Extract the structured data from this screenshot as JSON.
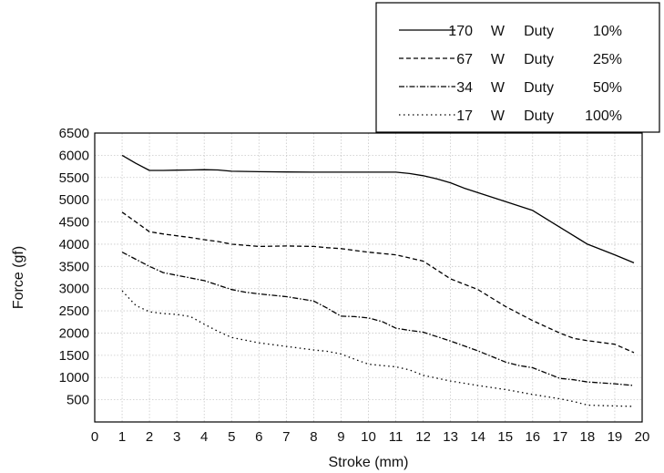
{
  "chart_data": {
    "type": "line",
    "xlabel": "Stroke (mm)",
    "ylabel": "Force (gf)",
    "xlim": [
      0,
      20
    ],
    "ylim": [
      0,
      6500
    ],
    "xticks": [
      0,
      1,
      2,
      3,
      4,
      5,
      6,
      7,
      8,
      9,
      10,
      11,
      12,
      13,
      14,
      15,
      16,
      17,
      18,
      19,
      20
    ],
    "yticks": [
      500,
      1000,
      1500,
      2000,
      2500,
      3000,
      3500,
      4000,
      4500,
      5000,
      5500,
      6000,
      6500
    ],
    "grid": true,
    "legend_position": "top-right, above plot",
    "series": [
      {
        "name": "170 W Duty 10%",
        "dash": "solid",
        "label_parts": [
          "170",
          "W",
          "Duty",
          "10%"
        ],
        "x": [
          1,
          1.5,
          2,
          2.5,
          3,
          3.5,
          4,
          4.5,
          5,
          6,
          7,
          8,
          9,
          10,
          11,
          11.5,
          12,
          12.5,
          13,
          13.5,
          14,
          15,
          16,
          17,
          18,
          19,
          19.7
        ],
        "y": [
          6000,
          5820,
          5660,
          5660,
          5665,
          5670,
          5675,
          5670,
          5640,
          5630,
          5625,
          5620,
          5620,
          5620,
          5620,
          5590,
          5540,
          5470,
          5380,
          5260,
          5160,
          4960,
          4760,
          4380,
          4000,
          3760,
          3580
        ]
      },
      {
        "name": "67 W Duty 25%",
        "dash": "dashed",
        "label_parts": [
          "67",
          "W",
          "Duty",
          "25%"
        ],
        "x": [
          1,
          1.5,
          2,
          2.5,
          3,
          3.5,
          4,
          4.5,
          5,
          6,
          7,
          8,
          8.5,
          9,
          9.5,
          10,
          11,
          12,
          12.5,
          13,
          14,
          15,
          16,
          17,
          17.5,
          18,
          19,
          19.7
        ],
        "y": [
          4720,
          4500,
          4280,
          4230,
          4190,
          4150,
          4100,
          4060,
          4000,
          3950,
          3960,
          3950,
          3920,
          3900,
          3860,
          3820,
          3760,
          3620,
          3420,
          3220,
          2980,
          2600,
          2280,
          2000,
          1880,
          1830,
          1750,
          1560
        ]
      },
      {
        "name": "34 W Duty 50%",
        "dash": "dashdot",
        "label_parts": [
          "34",
          "W",
          "Duty",
          "50%"
        ],
        "x": [
          1,
          1.5,
          2,
          2.5,
          3,
          3.5,
          4,
          4.5,
          5,
          5.5,
          6,
          7,
          8,
          8.5,
          9,
          9.5,
          10,
          10.5,
          11,
          11.5,
          12,
          13,
          14,
          15,
          15.5,
          16,
          17,
          17.5,
          18,
          19,
          19.7
        ],
        "y": [
          3820,
          3660,
          3500,
          3360,
          3300,
          3240,
          3180,
          3080,
          2980,
          2920,
          2880,
          2820,
          2720,
          2560,
          2380,
          2370,
          2340,
          2260,
          2110,
          2060,
          2020,
          1820,
          1600,
          1350,
          1270,
          1220,
          980,
          950,
          900,
          860,
          820
        ]
      },
      {
        "name": "17 W Duty 100%",
        "dash": "dotted",
        "label_parts": [
          "17",
          "W",
          "Duty",
          "100%"
        ],
        "x": [
          1,
          1.5,
          2,
          2.5,
          3,
          3.5,
          4,
          4.5,
          5,
          6,
          7,
          8,
          8.5,
          9,
          9.5,
          10,
          10.5,
          11,
          11.5,
          12,
          13,
          14,
          15,
          16,
          17,
          17.5,
          18,
          18.5,
          19,
          19.7
        ],
        "y": [
          2950,
          2620,
          2480,
          2440,
          2420,
          2370,
          2200,
          2040,
          1900,
          1780,
          1700,
          1620,
          1590,
          1530,
          1410,
          1300,
          1270,
          1240,
          1170,
          1050,
          920,
          820,
          730,
          620,
          520,
          460,
          380,
          370,
          360,
          350
        ]
      }
    ]
  }
}
